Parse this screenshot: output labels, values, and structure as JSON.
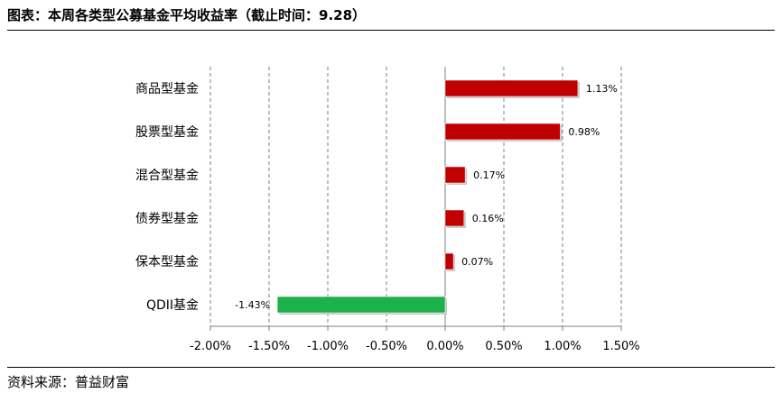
{
  "title": "图表：本周各类型公募基金平均收益率（截止时间：9.28）",
  "source": "资料来源：普益财富",
  "colors": {
    "positive": "#C00000",
    "negative": "#1DB14B",
    "grid": "#7f7f7f",
    "axis": "#000000"
  },
  "chart_data": {
    "type": "bar",
    "orientation": "horizontal",
    "categories": [
      "商品型基金",
      "股票型基金",
      "混合型基金",
      "债券型基金",
      "保本型基金",
      "QDII基金"
    ],
    "values": [
      1.13,
      0.98,
      0.17,
      0.16,
      0.07,
      -1.43
    ],
    "value_labels": [
      "1.13%",
      "0.98%",
      "0.17%",
      "0.16%",
      "0.07%",
      "-1.43%"
    ],
    "xlim": [
      -2.0,
      1.5
    ],
    "xticks": [
      -2.0,
      -1.5,
      -1.0,
      -0.5,
      0.0,
      0.5,
      1.0,
      1.5
    ],
    "xtick_labels": [
      "-2.00%",
      "-1.50%",
      "-1.00%",
      "-0.50%",
      "0.00%",
      "0.50%",
      "1.00%",
      "1.50%"
    ],
    "grid": "vertical dashed",
    "legend": "none"
  }
}
